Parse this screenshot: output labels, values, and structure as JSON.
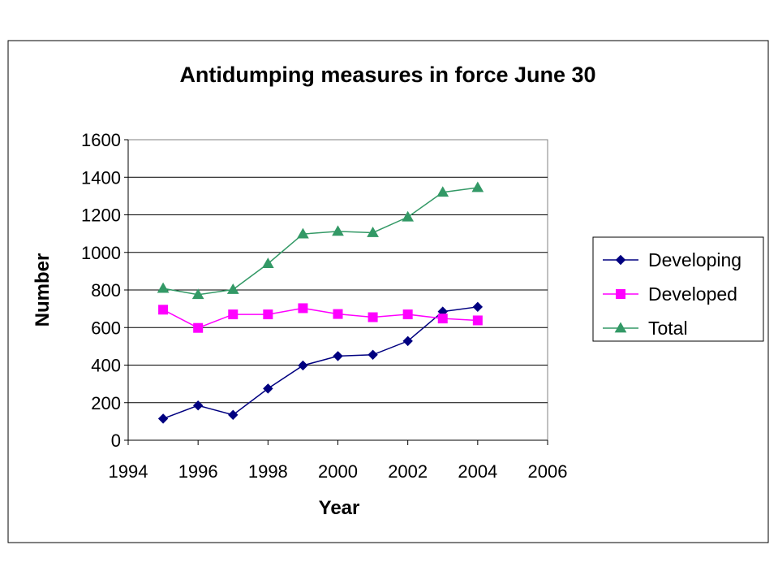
{
  "chart_data": {
    "type": "line",
    "title": "Antidumping measures in force June 30",
    "xlabel": "Year",
    "ylabel": "Number",
    "xlim": [
      1994,
      2006
    ],
    "ylim": [
      0,
      1600
    ],
    "x_ticks": [
      "1994",
      "1996",
      "1998",
      "2000",
      "2002",
      "2004",
      "2006"
    ],
    "y_ticks": [
      "0",
      "200",
      "400",
      "600",
      "800",
      "1000",
      "1200",
      "1400",
      "1600"
    ],
    "grid": "horizontal",
    "legend_position": "right",
    "x": [
      1995,
      1996,
      1997,
      1998,
      1999,
      2000,
      2001,
      2002,
      2003,
      2004
    ],
    "series": [
      {
        "name": "Developing",
        "color": "#000080",
        "marker": "diamond",
        "values": [
          115,
          185,
          135,
          275,
          398,
          448,
          455,
          528,
          685,
          710
        ]
      },
      {
        "name": "Developed",
        "color": "#FF00FF",
        "marker": "square",
        "values": [
          695,
          598,
          670,
          670,
          703,
          672,
          655,
          670,
          648,
          638
        ]
      },
      {
        "name": "Total",
        "color": "#339966",
        "marker": "triangle",
        "values": [
          808,
          775,
          802,
          940,
          1098,
          1112,
          1105,
          1188,
          1320,
          1345
        ]
      }
    ]
  }
}
